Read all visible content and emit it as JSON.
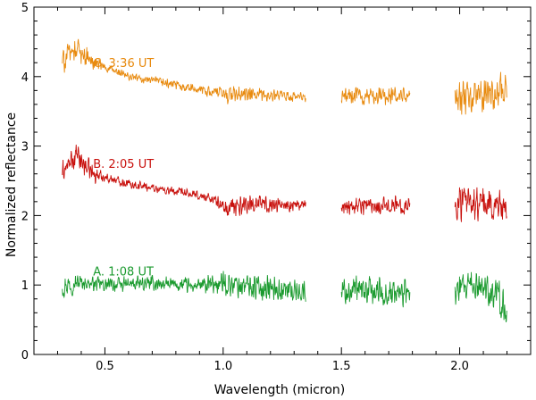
{
  "chart_data": {
    "type": "line",
    "title": "",
    "xlabel": "Wavelength (micron)",
    "ylabel": "Normalized reflectance",
    "xlim": [
      0.2,
      2.3
    ],
    "ylim": [
      0,
      5
    ],
    "x_ticks": [
      0.5,
      1.0,
      1.5,
      2.0
    ],
    "x_tick_labels": [
      "0.5",
      "1.0",
      "1.5",
      "2.0"
    ],
    "y_ticks": [
      0,
      1,
      2,
      3,
      4,
      5
    ],
    "y_tick_labels": [
      "0",
      "1",
      "2",
      "3",
      "4",
      "5"
    ],
    "grid": false,
    "series": [
      {
        "name": "A. 1:08 UT",
        "color": "#1a9a2e",
        "segments": [
          [
            0.32,
            1.35
          ],
          [
            1.5,
            1.79
          ],
          [
            1.98,
            2.2
          ]
        ],
        "profile": [
          [
            0.32,
            1.0
          ],
          [
            0.4,
            1.04
          ],
          [
            0.5,
            1.0
          ],
          [
            0.7,
            1.02
          ],
          [
            0.9,
            0.98
          ],
          [
            1.0,
            1.02
          ],
          [
            1.35,
            0.9
          ],
          [
            1.5,
            0.92
          ],
          [
            1.79,
            0.88
          ],
          [
            1.98,
            0.9
          ],
          [
            2.1,
            1.0
          ],
          [
            2.17,
            0.8
          ],
          [
            2.2,
            0.55
          ]
        ],
        "noise": [
          [
            0.32,
            0.12
          ],
          [
            0.42,
            0.06
          ],
          [
            0.9,
            0.07
          ],
          [
            1.02,
            0.12
          ],
          [
            1.35,
            0.1
          ],
          [
            1.5,
            0.13
          ],
          [
            1.79,
            0.13
          ],
          [
            1.98,
            0.14
          ],
          [
            2.2,
            0.14
          ]
        ]
      },
      {
        "name": "B. 2:05 UT",
        "color": "#c8100c",
        "segments": [
          [
            0.32,
            1.35
          ],
          [
            1.5,
            1.79
          ],
          [
            1.98,
            2.2
          ]
        ],
        "profile": [
          [
            0.32,
            2.62
          ],
          [
            0.38,
            2.85
          ],
          [
            0.45,
            2.6
          ],
          [
            0.6,
            2.46
          ],
          [
            0.8,
            2.34
          ],
          [
            0.95,
            2.25
          ],
          [
            1.02,
            2.08
          ],
          [
            1.1,
            2.18
          ],
          [
            1.35,
            2.14
          ],
          [
            1.5,
            2.15
          ],
          [
            1.79,
            2.15
          ],
          [
            1.98,
            2.18
          ],
          [
            2.2,
            2.15
          ]
        ],
        "noise": [
          [
            0.32,
            0.1
          ],
          [
            0.4,
            0.12
          ],
          [
            0.5,
            0.04
          ],
          [
            0.95,
            0.04
          ],
          [
            1.02,
            0.1
          ],
          [
            1.35,
            0.05
          ],
          [
            1.5,
            0.08
          ],
          [
            1.79,
            0.08
          ],
          [
            1.98,
            0.15
          ],
          [
            2.2,
            0.15
          ]
        ]
      },
      {
        "name": "C. 3:36 UT",
        "color": "#e88a0e",
        "segments": [
          [
            0.32,
            1.35
          ],
          [
            1.5,
            1.79
          ],
          [
            1.98,
            2.2
          ]
        ],
        "profile": [
          [
            0.32,
            4.22
          ],
          [
            0.38,
            4.42
          ],
          [
            0.45,
            4.2
          ],
          [
            0.6,
            4.0
          ],
          [
            0.8,
            3.88
          ],
          [
            1.0,
            3.75
          ],
          [
            1.35,
            3.7
          ],
          [
            1.5,
            3.72
          ],
          [
            1.79,
            3.72
          ],
          [
            1.98,
            3.68
          ],
          [
            2.1,
            3.7
          ],
          [
            2.2,
            3.85
          ]
        ],
        "noise": [
          [
            0.32,
            0.12
          ],
          [
            0.4,
            0.1
          ],
          [
            0.5,
            0.04
          ],
          [
            0.95,
            0.04
          ],
          [
            1.02,
            0.08
          ],
          [
            1.35,
            0.04
          ],
          [
            1.5,
            0.08
          ],
          [
            1.79,
            0.08
          ],
          [
            1.98,
            0.15
          ],
          [
            2.2,
            0.15
          ]
        ]
      }
    ]
  }
}
